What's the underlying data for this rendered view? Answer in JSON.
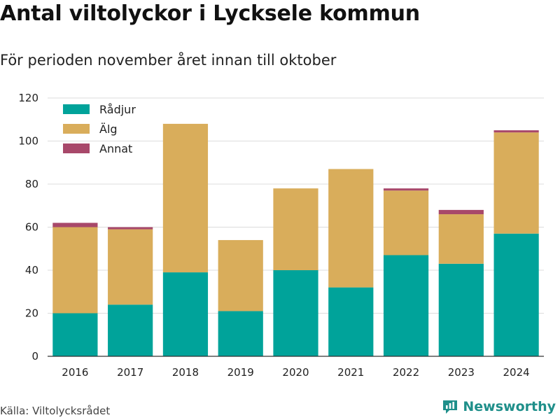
{
  "title": "Antal viltolyckor i Lycksele kommun",
  "subtitle": "För perioden november året innan till oktober",
  "source": "Källa: Viltolycksrådet",
  "brand": {
    "name": "Newsworthy",
    "icon": "newsworthy-logo-icon",
    "color": "#1f8f8a"
  },
  "chart_data": {
    "type": "bar",
    "stacked": true,
    "title": "Antal viltolyckor i Lycksele kommun",
    "subtitle": "För perioden november året innan till oktober",
    "xlabel": "",
    "ylabel": "",
    "ylim": [
      0,
      120
    ],
    "yticks": [
      0,
      20,
      40,
      60,
      80,
      100,
      120
    ],
    "grid": true,
    "legend_position": "top-left",
    "categories": [
      "2016",
      "2017",
      "2018",
      "2019",
      "2020",
      "2021",
      "2022",
      "2023",
      "2024"
    ],
    "series": [
      {
        "name": "Rådjur",
        "color": "#00a39a",
        "values": [
          20,
          24,
          39,
          21,
          40,
          32,
          47,
          43,
          57
        ]
      },
      {
        "name": "Älg",
        "color": "#d9ad5b",
        "values": [
          40,
          35,
          69,
          33,
          38,
          55,
          30,
          23,
          47
        ]
      },
      {
        "name": "Annat",
        "color": "#a8486a",
        "values": [
          2,
          1,
          0,
          0,
          0,
          0,
          1,
          2,
          1
        ]
      }
    ]
  }
}
